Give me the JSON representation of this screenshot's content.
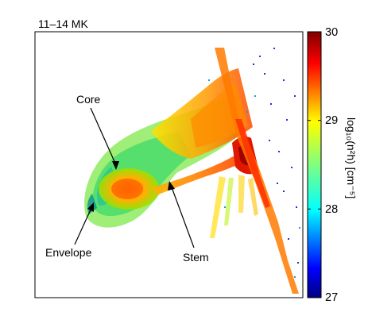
{
  "panel_title": "11–14 MK",
  "annotations": {
    "core": "Core",
    "envelope": "Envelope",
    "stem": "Stem"
  },
  "colorbar": {
    "label": "log₁₀(n²h) [cm⁻⁵]",
    "ticks": [
      "30",
      "29",
      "28",
      "27"
    ],
    "colormap": "jet",
    "range": [
      27,
      30
    ]
  },
  "colors": {
    "background": "#ffffff",
    "frame": "#000000"
  }
}
